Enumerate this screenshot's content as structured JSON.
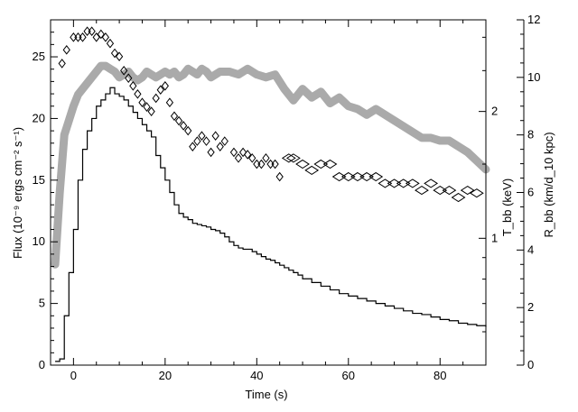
{
  "chart_data": {
    "type": "line",
    "x": {
      "label": "Time (s)",
      "range": [
        -5,
        90
      ],
      "ticks": [
        0,
        20,
        40,
        60,
        80
      ]
    },
    "y_left": {
      "label": "Flux (10⁻⁹ ergs cm⁻² s⁻¹)",
      "range": [
        0,
        28
      ],
      "ticks": [
        0,
        5,
        10,
        15,
        20,
        25
      ]
    },
    "y_right_T": {
      "label": "T_bb (keV)",
      "scale": "log",
      "range": [
        0.5,
        3.3
      ],
      "ticks": [
        1,
        2
      ]
    },
    "y_right_R": {
      "label": "R_bb (km/d_10 kpc)",
      "range": [
        0,
        12
      ],
      "ticks": [
        0,
        2,
        4,
        6,
        8,
        10,
        12
      ]
    },
    "series": [
      {
        "name": "Flux",
        "axis": "left",
        "style": "step",
        "color": "#000000",
        "points": [
          [
            -4,
            0.3
          ],
          [
            -3,
            0.5
          ],
          [
            -2,
            4
          ],
          [
            -1,
            7.5
          ],
          [
            0,
            11
          ],
          [
            1,
            15
          ],
          [
            2,
            17.5
          ],
          [
            3,
            19
          ],
          [
            4,
            20
          ],
          [
            5,
            21
          ],
          [
            6,
            21.5
          ],
          [
            7,
            22
          ],
          [
            8,
            22.5
          ],
          [
            9,
            22
          ],
          [
            10,
            21.8
          ],
          [
            11,
            21.5
          ],
          [
            12,
            21
          ],
          [
            13,
            20.5
          ],
          [
            14,
            20
          ],
          [
            15,
            19.5
          ],
          [
            16,
            19
          ],
          [
            17,
            18.5
          ],
          [
            18,
            17
          ],
          [
            19,
            16
          ],
          [
            20,
            15
          ],
          [
            21,
            14
          ],
          [
            22,
            13
          ],
          [
            23,
            12.3
          ],
          [
            24,
            12
          ],
          [
            25,
            11.8
          ],
          [
            26,
            11.5
          ],
          [
            27,
            11.4
          ],
          [
            28,
            11.3
          ],
          [
            29,
            11.2
          ],
          [
            30,
            11
          ],
          [
            31,
            10.9
          ],
          [
            32,
            10.7
          ],
          [
            33,
            10.4
          ],
          [
            34,
            10
          ],
          [
            35,
            9.7
          ],
          [
            36,
            9.5
          ],
          [
            37,
            9.4
          ],
          [
            38,
            9.4
          ],
          [
            39,
            9.2
          ],
          [
            40,
            9
          ],
          [
            41,
            8.8
          ],
          [
            42,
            8.6
          ],
          [
            43,
            8.5
          ],
          [
            44,
            8.3
          ],
          [
            45,
            8.1
          ],
          [
            46,
            7.9
          ],
          [
            47,
            7.7
          ],
          [
            48,
            7.5
          ],
          [
            49,
            7.3
          ],
          [
            50,
            7
          ],
          [
            52,
            6.7
          ],
          [
            54,
            6.4
          ],
          [
            56,
            6.1
          ],
          [
            58,
            5.8
          ],
          [
            60,
            5.6
          ],
          [
            62,
            5.4
          ],
          [
            64,
            5.2
          ],
          [
            66,
            5
          ],
          [
            68,
            4.8
          ],
          [
            70,
            4.6
          ],
          [
            72,
            4.4
          ],
          [
            74,
            4.2
          ],
          [
            76,
            4.1
          ],
          [
            78,
            3.9
          ],
          [
            80,
            3.7
          ],
          [
            82,
            3.6
          ],
          [
            84,
            3.4
          ],
          [
            86,
            3.3
          ],
          [
            88,
            3.2
          ],
          [
            90,
            3.1
          ]
        ]
      },
      {
        "name": "T_bb",
        "axis": "right_T",
        "style": "diamond",
        "color": "#000000",
        "points": [
          [
            -2.5,
            2.6
          ],
          [
            -1.5,
            2.8
          ],
          [
            0,
            3.0
          ],
          [
            1,
            3.0
          ],
          [
            2,
            3.0
          ],
          [
            3,
            3.1
          ],
          [
            4,
            3.1
          ],
          [
            5,
            3.0
          ],
          [
            6,
            3.05
          ],
          [
            7,
            3.0
          ],
          [
            8,
            2.9
          ],
          [
            9,
            2.75
          ],
          [
            10,
            2.7
          ],
          [
            11,
            2.5
          ],
          [
            12,
            2.4
          ],
          [
            13,
            2.3
          ],
          [
            14,
            2.2
          ],
          [
            15,
            2.1
          ],
          [
            16,
            2.05
          ],
          [
            17,
            2.0
          ],
          [
            18,
            2.15
          ],
          [
            19,
            2.25
          ],
          [
            20,
            2.3
          ],
          [
            21,
            2.1
          ],
          [
            22,
            1.95
          ],
          [
            23,
            1.9
          ],
          [
            24,
            1.85
          ],
          [
            25,
            1.8
          ],
          [
            26,
            1.65
          ],
          [
            27,
            1.7
          ],
          [
            28,
            1.75
          ],
          [
            29,
            1.7
          ],
          [
            30,
            1.6
          ],
          [
            31,
            1.75
          ],
          [
            32,
            1.65
          ],
          [
            33,
            1.7
          ],
          [
            35,
            1.6
          ],
          [
            36,
            1.55
          ],
          [
            37,
            1.6
          ],
          [
            38,
            1.58
          ],
          [
            39,
            1.55
          ],
          [
            40,
            1.5
          ],
          [
            41,
            1.5
          ],
          [
            42,
            1.55
          ],
          [
            43,
            1.5
          ],
          [
            44,
            1.5
          ],
          [
            45,
            1.4
          ],
          [
            47,
            1.55
          ],
          [
            48,
            1.55
          ],
          [
            50,
            1.5
          ],
          [
            52,
            1.45
          ],
          [
            54,
            1.5
          ],
          [
            56,
            1.5
          ],
          [
            58,
            1.4
          ],
          [
            60,
            1.4
          ],
          [
            62,
            1.4
          ],
          [
            64,
            1.4
          ],
          [
            66,
            1.4
          ],
          [
            68,
            1.35
          ],
          [
            70,
            1.35
          ],
          [
            72,
            1.35
          ],
          [
            74,
            1.35
          ],
          [
            76,
            1.3
          ],
          [
            78,
            1.35
          ],
          [
            80,
            1.3
          ],
          [
            82,
            1.3
          ],
          [
            84,
            1.25
          ],
          [
            86,
            1.3
          ],
          [
            88,
            1.28
          ]
        ]
      },
      {
        "name": "R_bb",
        "axis": "right_R",
        "style": "band",
        "color": "#aaaaaa",
        "points": [
          [
            -4,
            3.5
          ],
          [
            -3,
            6
          ],
          [
            -2,
            8
          ],
          [
            -1,
            8.5
          ],
          [
            0,
            9
          ],
          [
            1,
            9.4
          ],
          [
            2,
            9.6
          ],
          [
            3,
            9.8
          ],
          [
            4,
            10
          ],
          [
            5,
            10.2
          ],
          [
            6,
            10.4
          ],
          [
            7,
            10.4
          ],
          [
            8,
            10.3
          ],
          [
            9,
            10.2
          ],
          [
            10,
            10
          ],
          [
            11,
            10.1
          ],
          [
            12,
            10.2
          ],
          [
            13,
            10
          ],
          [
            14,
            9.9
          ],
          [
            15,
            10
          ],
          [
            16,
            10.2
          ],
          [
            17,
            10.1
          ],
          [
            18,
            10
          ],
          [
            19,
            10.1
          ],
          [
            20,
            10.2
          ],
          [
            21,
            10.1
          ],
          [
            22,
            10.2
          ],
          [
            23,
            10
          ],
          [
            24,
            10.1
          ],
          [
            25,
            10.3
          ],
          [
            26,
            10.2
          ],
          [
            27,
            10.1
          ],
          [
            28,
            10.3
          ],
          [
            29,
            10.2
          ],
          [
            30,
            10
          ],
          [
            32,
            10.2
          ],
          [
            34,
            10.2
          ],
          [
            36,
            10.1
          ],
          [
            38,
            10.3
          ],
          [
            40,
            10.1
          ],
          [
            42,
            10
          ],
          [
            44,
            10.1
          ],
          [
            46,
            9.6
          ],
          [
            48,
            9.2
          ],
          [
            50,
            9.6
          ],
          [
            52,
            9.3
          ],
          [
            54,
            9.5
          ],
          [
            56,
            9.1
          ],
          [
            58,
            9.3
          ],
          [
            60,
            9
          ],
          [
            62,
            8.9
          ],
          [
            64,
            8.7
          ],
          [
            66,
            8.9
          ],
          [
            68,
            8.7
          ],
          [
            70,
            8.5
          ],
          [
            72,
            8.3
          ],
          [
            74,
            8.1
          ],
          [
            76,
            7.9
          ],
          [
            78,
            7.9
          ],
          [
            80,
            7.8
          ],
          [
            82,
            7.8
          ],
          [
            84,
            7.6
          ],
          [
            86,
            7.4
          ],
          [
            88,
            7.1
          ],
          [
            90,
            6.8
          ]
        ]
      }
    ]
  }
}
